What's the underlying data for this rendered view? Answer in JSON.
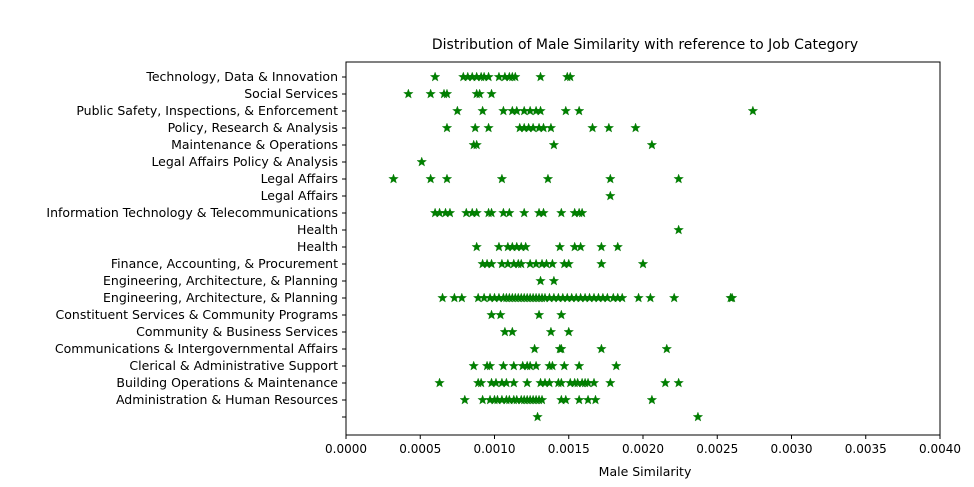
{
  "chart_data": {
    "type": "scatter",
    "title": "Distribution of Male Similarity with reference to Job Category",
    "xlabel": "Male Similarity",
    "ylabel": "",
    "xlim": [
      0.0,
      0.004
    ],
    "x_ticks": [
      "0.0000",
      "0.0005",
      "0.0010",
      "0.0015",
      "0.0020",
      "0.0025",
      "0.0030",
      "0.0035",
      "0.0040"
    ],
    "x_tick_values": [
      0.0,
      0.0005,
      0.001,
      0.0015,
      0.002,
      0.0025,
      0.003,
      0.0035,
      0.004
    ],
    "marker": "star",
    "color": "#008000",
    "grid": false,
    "categories": [
      "",
      "Administration & Human Resources",
      "Building Operations & Maintenance",
      "Clerical & Administrative Support",
      "Communications & Intergovernmental Affairs",
      "Community & Business Services",
      "Constituent Services & Community Programs",
      "Engineering, Architecture, & Planning",
      "Engineering, Architecture, & Planning ",
      "Finance, Accounting, & Procurement",
      "Health",
      "Health ",
      "Information Technology & Telecommunications",
      "Legal Affairs",
      "Legal Affairs ",
      "Legal Affairs Policy & Analysis",
      "Maintenance & Operations",
      "Policy, Research & Analysis",
      "Public Safety, Inspections, & Enforcement",
      "Social Services",
      "Technology, Data & Innovation"
    ],
    "points": [
      {
        "category": "",
        "x": [
          0.00129,
          0.00237
        ]
      },
      {
        "category": "Administration & Human Resources",
        "x": [
          0.0008,
          0.00092,
          0.00097,
          0.001,
          0.00102,
          0.00105,
          0.00108,
          0.0011,
          0.00113,
          0.00115,
          0.00118,
          0.0012,
          0.00122,
          0.00124,
          0.00126,
          0.00128,
          0.0013,
          0.00132,
          0.00145,
          0.00148,
          0.00157,
          0.00163,
          0.00168,
          0.00206
        ]
      },
      {
        "category": "Building Operations & Maintenance",
        "x": [
          0.00063,
          0.00089,
          0.00091,
          0.00098,
          0.00101,
          0.00105,
          0.00108,
          0.00113,
          0.00122,
          0.00131,
          0.00134,
          0.00137,
          0.00143,
          0.00145,
          0.00151,
          0.00154,
          0.00156,
          0.00159,
          0.00161,
          0.00163,
          0.00167,
          0.00178,
          0.00215,
          0.00224
        ]
      },
      {
        "category": "Clerical & Administrative Support",
        "x": [
          0.00086,
          0.00095,
          0.00097,
          0.00106,
          0.00113,
          0.00119,
          0.00122,
          0.00124,
          0.00128,
          0.00137,
          0.00139,
          0.00147,
          0.00157,
          0.00182
        ]
      },
      {
        "category": "Communications & Intergovernmental Affairs",
        "x": [
          0.00127,
          0.00144,
          0.00145,
          0.00172,
          0.00216
        ]
      },
      {
        "category": "Community & Business Services",
        "x": [
          0.00107,
          0.00112,
          0.00138,
          0.0015
        ]
      },
      {
        "category": "Constituent Services & Community Programs",
        "x": [
          0.00098,
          0.00104,
          0.0013,
          0.00145
        ]
      },
      {
        "category": "Engineering, Architecture, & Planning",
        "x": [
          0.00065,
          0.00073,
          0.00078,
          0.00089,
          0.00093,
          0.00097,
          0.001,
          0.00103,
          0.00106,
          0.00108,
          0.0011,
          0.00112,
          0.00114,
          0.00116,
          0.00118,
          0.0012,
          0.00122,
          0.00124,
          0.00126,
          0.00128,
          0.0013,
          0.00132,
          0.00134,
          0.00137,
          0.0014,
          0.00143,
          0.00146,
          0.00149,
          0.00152,
          0.00155,
          0.00158,
          0.00161,
          0.00164,
          0.00167,
          0.0017,
          0.00173,
          0.00176,
          0.0018,
          0.00183,
          0.00186,
          0.00197,
          0.00205,
          0.00221,
          0.00259,
          0.0026
        ]
      },
      {
        "category": "Engineering, Architecture, & Planning ",
        "x": [
          0.00131,
          0.0014
        ]
      },
      {
        "category": "Finance, Accounting, & Procurement",
        "x": [
          0.00092,
          0.00095,
          0.00098,
          0.00105,
          0.00109,
          0.00113,
          0.00116,
          0.00118,
          0.00124,
          0.00128,
          0.00132,
          0.00135,
          0.00139,
          0.00147,
          0.0015,
          0.00172,
          0.002
        ]
      },
      {
        "category": "Health",
        "x": [
          0.00088,
          0.00103,
          0.00109,
          0.00112,
          0.00115,
          0.00118,
          0.00121,
          0.00144,
          0.00154,
          0.00158,
          0.00172,
          0.00183
        ]
      },
      {
        "category": "Health ",
        "x": [
          0.00224
        ]
      },
      {
        "category": "Information Technology & Telecommunications",
        "x": [
          0.0006,
          0.00063,
          0.00067,
          0.0007,
          0.00081,
          0.00085,
          0.00088,
          0.00096,
          0.00098,
          0.00106,
          0.0011,
          0.0012,
          0.0013,
          0.00133,
          0.00145,
          0.00154,
          0.00157,
          0.00159
        ]
      },
      {
        "category": "Legal Affairs",
        "x": [
          0.00178
        ]
      },
      {
        "category": "Legal Affairs ",
        "x": [
          0.00032,
          0.00057,
          0.00068,
          0.00105,
          0.00136,
          0.00178,
          0.00224
        ]
      },
      {
        "category": "Legal Affairs Policy & Analysis",
        "x": [
          0.00051
        ]
      },
      {
        "category": "Maintenance & Operations",
        "x": [
          0.00086,
          0.00088,
          0.0014,
          0.00206
        ]
      },
      {
        "category": "Policy, Research & Analysis",
        "x": [
          0.00068,
          0.00087,
          0.00096,
          0.00117,
          0.0012,
          0.00123,
          0.00126,
          0.0013,
          0.00133,
          0.00138,
          0.00166,
          0.00177,
          0.00195
        ]
      },
      {
        "category": "Public Safety, Inspections, & Enforcement",
        "x": [
          0.00075,
          0.00092,
          0.00106,
          0.00112,
          0.00115,
          0.0012,
          0.00124,
          0.00128,
          0.00131,
          0.00148,
          0.00157,
          0.00274
        ]
      },
      {
        "category": "Social Services",
        "x": [
          0.00042,
          0.00057,
          0.00066,
          0.00068,
          0.00088,
          0.0009,
          0.00098
        ]
      },
      {
        "category": "Technology, Data & Innovation",
        "x": [
          0.0006,
          0.00079,
          0.00082,
          0.00085,
          0.00088,
          0.00091,
          0.00093,
          0.00096,
          0.00103,
          0.00107,
          0.0011,
          0.00112,
          0.00114,
          0.00131,
          0.00149,
          0.00151
        ]
      }
    ]
  }
}
